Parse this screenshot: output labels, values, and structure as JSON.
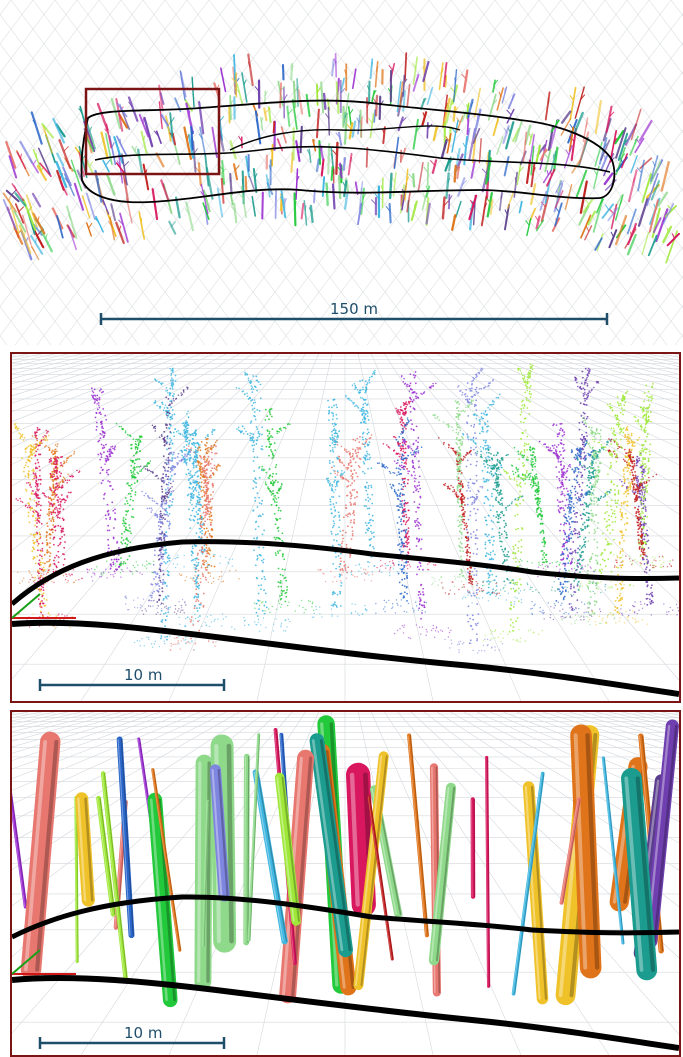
{
  "figure": {
    "panels": [
      {
        "id": "overview",
        "scale_label": "150 m"
      },
      {
        "id": "zoom-point-cloud",
        "scale_label": "10 m"
      },
      {
        "id": "zoom-cylinders",
        "scale_label": "10 m"
      }
    ]
  },
  "colors": {
    "frame": "#7b1414",
    "scale_bar": "#1f4e6b",
    "trajectory": "#000000",
    "grid": "#d4d8dc",
    "palette": [
      "#22c93a",
      "#e0741a",
      "#2a66c9",
      "#6f3fb0",
      "#d8175e",
      "#8fd98a",
      "#e8776f",
      "#3fb6e0",
      "#9b2fd1",
      "#c21f1f",
      "#7f86e0",
      "#9fe83a",
      "#f0c22a",
      "#1c9c8f",
      "#5a3d8c"
    ]
  }
}
